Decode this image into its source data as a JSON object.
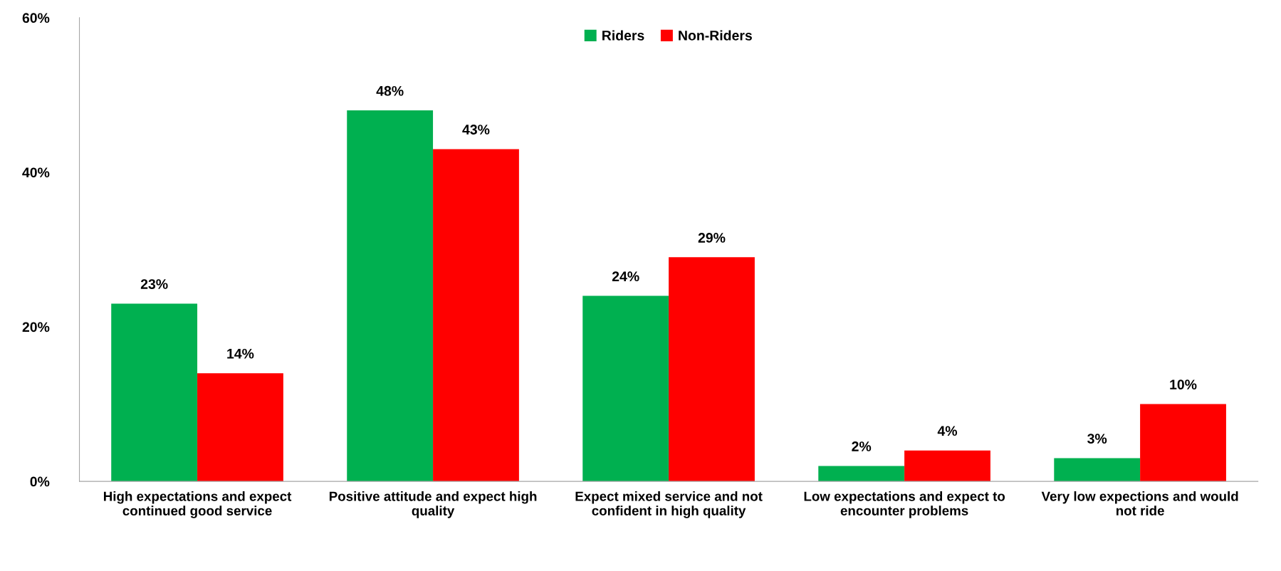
{
  "chart_data": {
    "type": "bar",
    "categories": [
      "High expectations and expect\ncontinued good service",
      "Positive attitude and expect high\nquality",
      "Expect mixed service and not\nconfident in high quality",
      "Low expectations and expect to\nencounter problems",
      "Very low expections and would\nnot ride"
    ],
    "series": [
      {
        "name": "Riders",
        "color": "#00b050",
        "values": [
          23,
          48,
          24,
          2,
          3
        ],
        "value_labels": [
          "23%",
          "48%",
          "24%",
          "2%",
          "3%"
        ]
      },
      {
        "name": "Non-Riders",
        "color": "#ff0000",
        "values": [
          14,
          43,
          29,
          4,
          10
        ],
        "value_labels": [
          "14%",
          "43%",
          "29%",
          "4%",
          "10%"
        ]
      }
    ],
    "ylim": [
      0,
      60
    ],
    "yticks": [
      {
        "value": 0,
        "label": "0%"
      },
      {
        "value": 20,
        "label": "20%"
      },
      {
        "value": 40,
        "label": "40%"
      },
      {
        "value": 60,
        "label": "60%"
      }
    ],
    "grid": false,
    "legend": "top"
  }
}
